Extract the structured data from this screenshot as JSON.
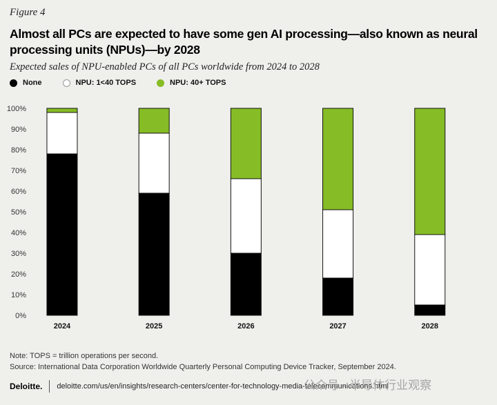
{
  "figure_label": "Figure 4",
  "title": "Almost all PCs are expected to have some gen AI processing—also known as neural processing units (NPUs)—by 2028",
  "subtitle": "Expected sales of NPU-enabled PCs of all PCs worldwide from 2024 to 2028",
  "legend": [
    {
      "label": "None",
      "color": "#000000"
    },
    {
      "label": "NPU: 1<40 TOPS",
      "color": "#ffffff"
    },
    {
      "label": "NPU: 40+ TOPS",
      "color": "#86bc25"
    }
  ],
  "chart_data": {
    "type": "bar",
    "stacked": true,
    "categories": [
      "2024",
      "2025",
      "2026",
      "2027",
      "2028"
    ],
    "series": [
      {
        "name": "None",
        "color": "#000000",
        "values": [
          78,
          59,
          30,
          18,
          5
        ]
      },
      {
        "name": "NPU: 1<40 TOPS",
        "color": "#ffffff",
        "values": [
          20,
          29,
          36,
          33,
          34
        ]
      },
      {
        "name": "NPU: 40+ TOPS",
        "color": "#86bc25",
        "values": [
          2,
          12,
          34,
          49,
          61
        ]
      }
    ],
    "y_ticks": [
      "0%",
      "10%",
      "20%",
      "30%",
      "40%",
      "50%",
      "60%",
      "70%",
      "80%",
      "90%",
      "100%"
    ],
    "ylim": [
      0,
      100
    ],
    "xlabel": "",
    "ylabel": "",
    "grid": false,
    "legend_position": "top-left"
  },
  "note": "Note: TOPS = trillion operations per second.",
  "source": "Source: International Data Corporation Worldwide Quarterly Personal Computing Device Tracker, September 2024.",
  "footer": {
    "brand": "Deloitte.",
    "url": "deloitte.com/us/en/insights/research-centers/center-for-technology-media-telecommunications.html"
  },
  "watermark": "公众号 · 半导体行业观察"
}
